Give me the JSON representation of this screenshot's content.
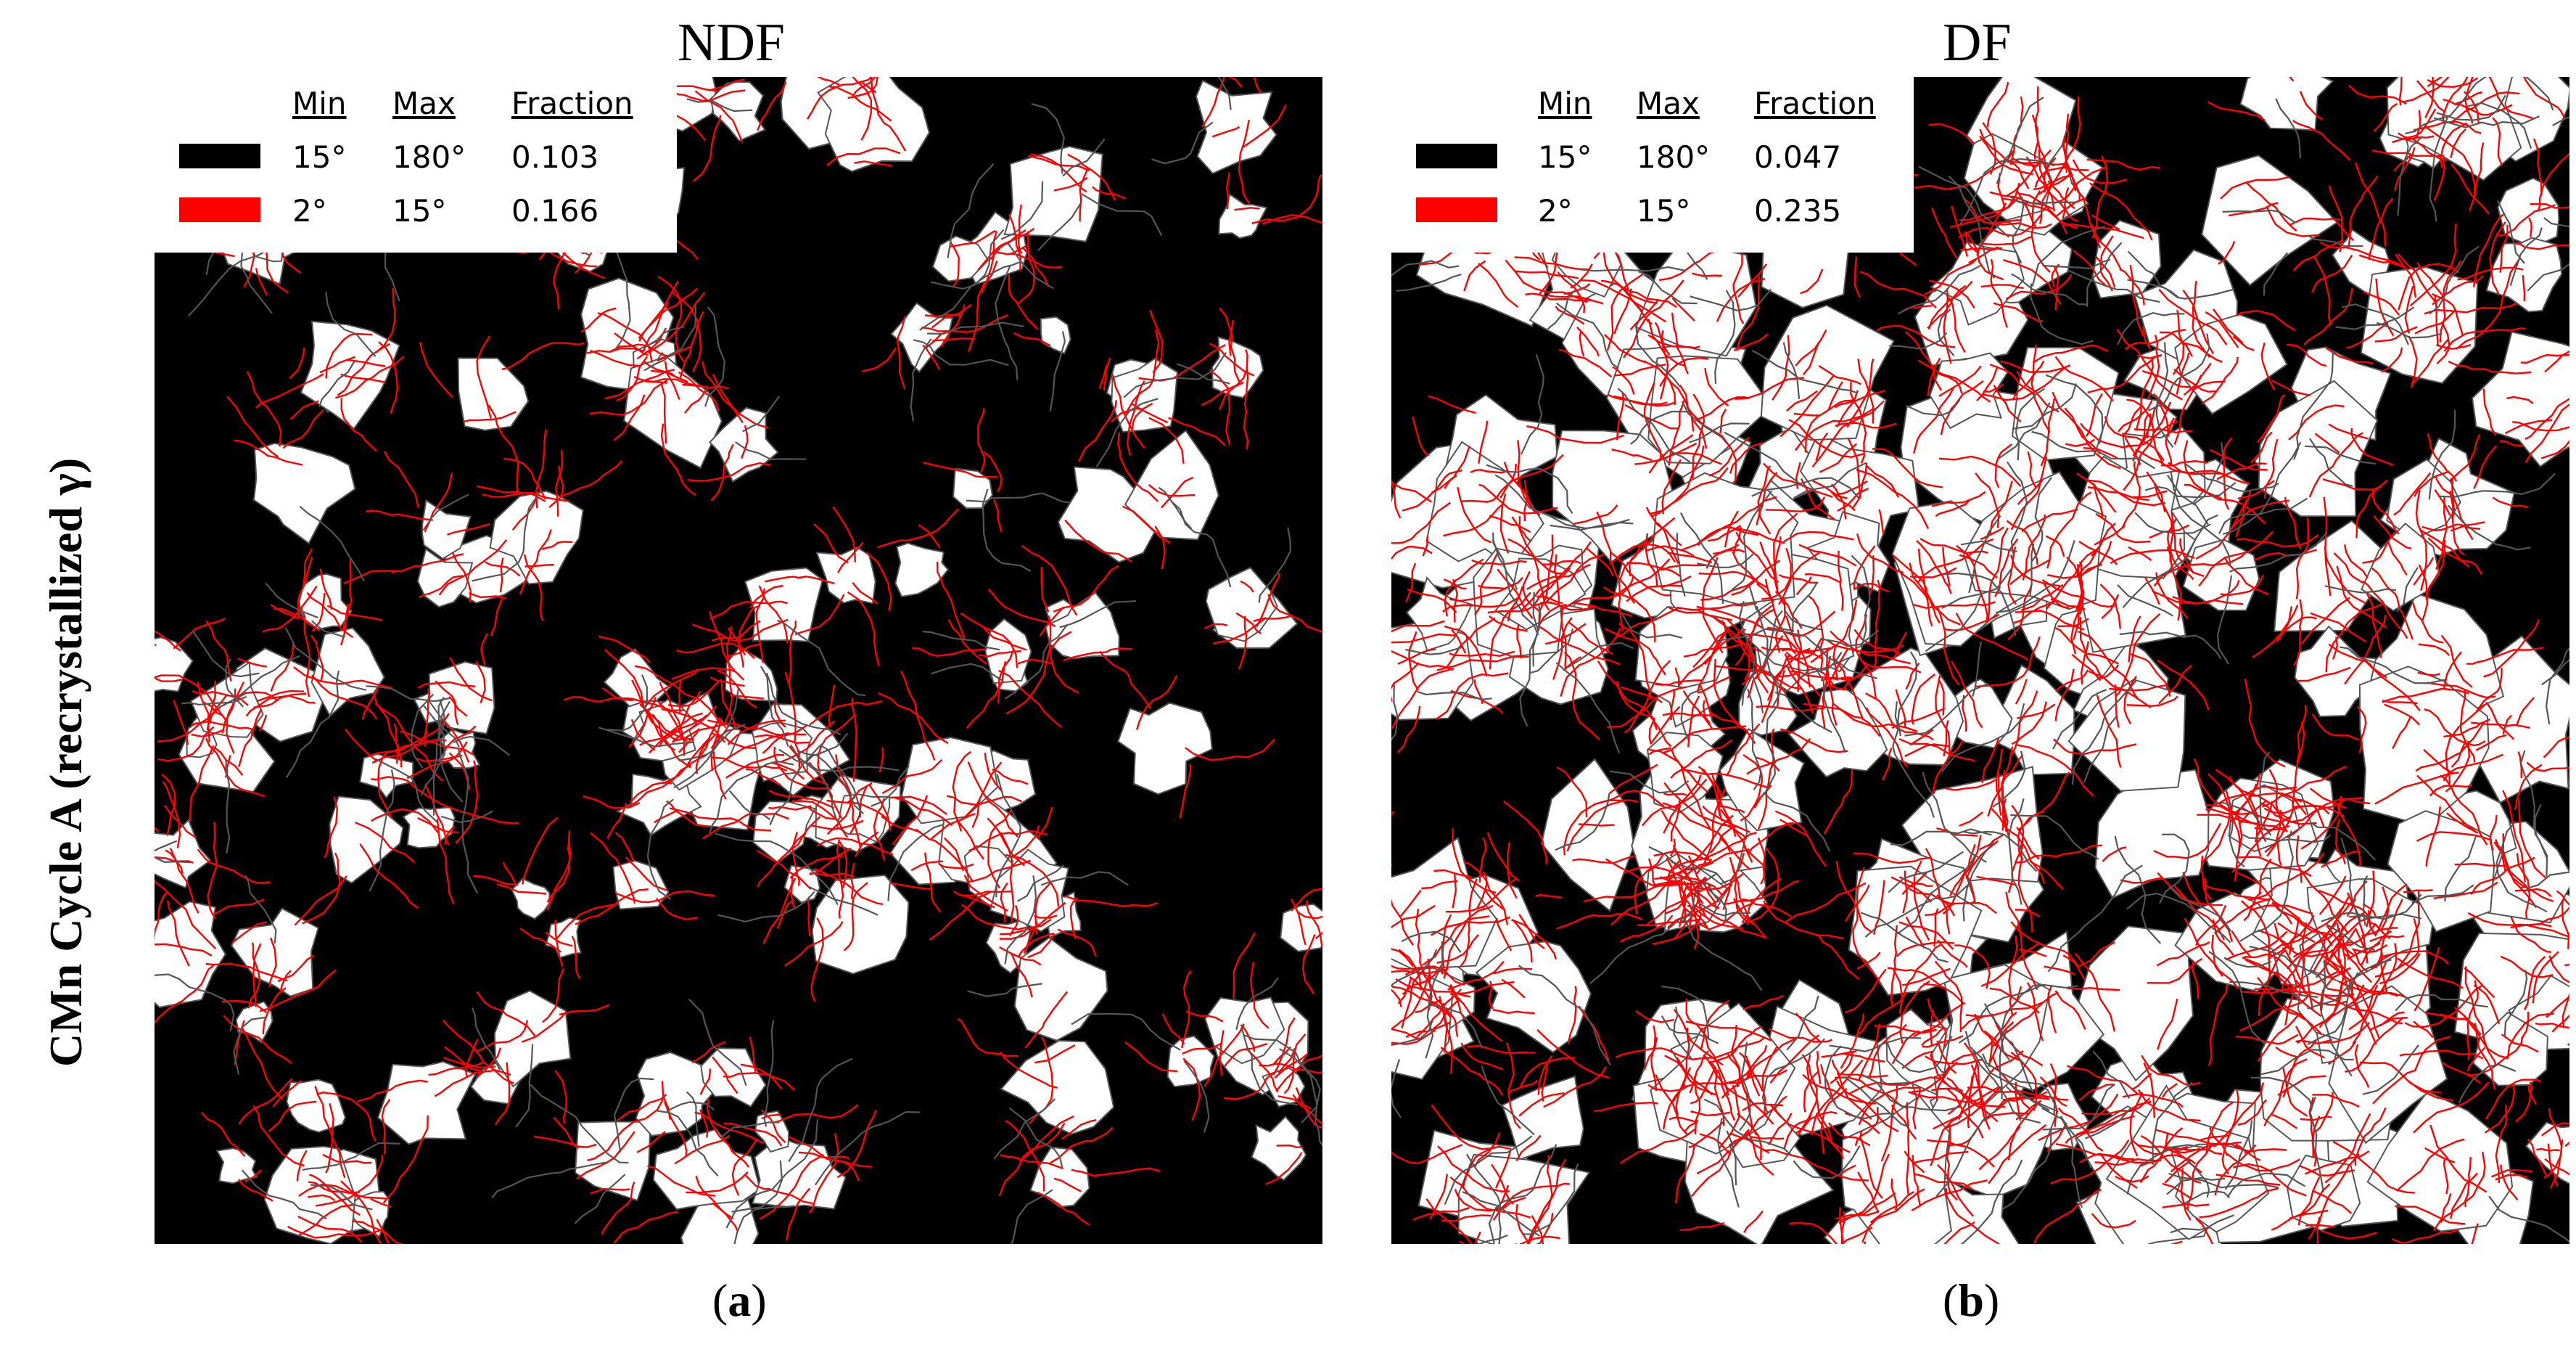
{
  "row_label": {
    "text": "CMn Cycle A (recrystallized γ)"
  },
  "panels": [
    {
      "title": "NDF",
      "caption_letter": "a",
      "legend": {
        "headers": {
          "min": "Min",
          "max": "Max",
          "fraction": "Fraction"
        },
        "rows": [
          {
            "color": "#000000",
            "min": "15°",
            "max": "180°",
            "fraction": "0.103"
          },
          {
            "color": "#ff0000",
            "min": "2°",
            "max": "15°",
            "fraction": "0.166"
          }
        ]
      }
    },
    {
      "title": "DF",
      "caption_letter": "b",
      "legend": {
        "headers": {
          "min": "Min",
          "max": "Max",
          "fraction": "Fraction"
        },
        "rows": [
          {
            "color": "#000000",
            "min": "15°",
            "max": "180°",
            "fraction": "0.047"
          },
          {
            "color": "#ff0000",
            "min": "2°",
            "max": "15°",
            "fraction": "0.235"
          }
        ]
      }
    }
  ],
  "colors": {
    "high_angle_boundary": "#000000",
    "low_angle_boundary": "#ff0000",
    "grain_interior": "#ffffff",
    "grain_boundary_gray": "#555555"
  }
}
